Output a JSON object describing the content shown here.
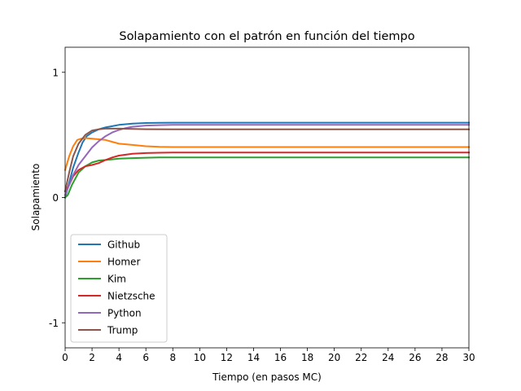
{
  "chart_data": {
    "type": "line",
    "title": "Solapamiento con el patrón en función del tiempo",
    "xlabel": "Tiempo (en pasos MC)",
    "ylabel": "Solapamiento",
    "xlim": [
      0,
      30
    ],
    "ylim": [
      -1.2,
      1.2
    ],
    "xticks": [
      0,
      2,
      4,
      6,
      8,
      10,
      12,
      14,
      16,
      18,
      20,
      22,
      24,
      26,
      28,
      30
    ],
    "yticks": [
      -1,
      0,
      1
    ],
    "grid": false,
    "legend_position": "lower-left",
    "series": [
      {
        "name": "Github",
        "color": "#1f77b4",
        "x": [
          0,
          0.3,
          0.6,
          1,
          1.3,
          1.6,
          2,
          2.5,
          3,
          3.5,
          4,
          5,
          6,
          7,
          8,
          10,
          15,
          20,
          25,
          30
        ],
        "y": [
          0,
          0.12,
          0.24,
          0.36,
          0.44,
          0.49,
          0.52,
          0.545,
          0.56,
          0.57,
          0.58,
          0.59,
          0.595,
          0.597,
          0.598,
          0.598,
          0.598,
          0.598,
          0.598,
          0.598
        ]
      },
      {
        "name": "Homer",
        "color": "#ff7f0e",
        "x": [
          0,
          0.3,
          0.6,
          0.9,
          1.2,
          1.5,
          2,
          2.5,
          3,
          3.5,
          4,
          5,
          6,
          7,
          8,
          10,
          15,
          20,
          25,
          30
        ],
        "y": [
          0.22,
          0.33,
          0.41,
          0.46,
          0.47,
          0.475,
          0.47,
          0.465,
          0.46,
          0.445,
          0.43,
          0.42,
          0.41,
          0.405,
          0.403,
          0.403,
          0.403,
          0.403,
          0.403,
          0.403
        ]
      },
      {
        "name": "Kim",
        "color": "#2ca02c",
        "x": [
          0,
          0.2,
          0.5,
          1,
          1.5,
          2,
          2.5,
          3,
          3.5,
          4,
          5,
          6,
          7,
          8,
          10,
          15,
          20,
          25,
          30
        ],
        "y": [
          0,
          0.02,
          0.1,
          0.2,
          0.25,
          0.28,
          0.295,
          0.3,
          0.305,
          0.31,
          0.315,
          0.318,
          0.32,
          0.32,
          0.32,
          0.32,
          0.32,
          0.32,
          0.32
        ]
      },
      {
        "name": "Nietzsche",
        "color": "#d62728",
        "x": [
          0,
          0.3,
          0.6,
          1,
          1.5,
          2,
          2.5,
          3,
          3.5,
          4,
          5,
          6,
          7,
          8,
          10,
          15,
          20,
          25,
          30
        ],
        "y": [
          0.05,
          0.1,
          0.17,
          0.22,
          0.25,
          0.26,
          0.275,
          0.3,
          0.32,
          0.335,
          0.35,
          0.355,
          0.358,
          0.36,
          0.36,
          0.36,
          0.36,
          0.36,
          0.36
        ]
      },
      {
        "name": "Python",
        "color": "#9467bd",
        "x": [
          0,
          0.3,
          0.6,
          1,
          1.5,
          2,
          2.5,
          3,
          3.5,
          4,
          4.5,
          5,
          6,
          7,
          8,
          10,
          15,
          20,
          25,
          30
        ],
        "y": [
          0.02,
          0.1,
          0.18,
          0.26,
          0.33,
          0.4,
          0.45,
          0.49,
          0.52,
          0.54,
          0.555,
          0.565,
          0.575,
          0.578,
          0.58,
          0.58,
          0.58,
          0.58,
          0.58,
          0.58
        ]
      },
      {
        "name": "Trump",
        "color": "#8c564b",
        "x": [
          0,
          0.3,
          0.6,
          1,
          1.5,
          2,
          2.5,
          3,
          4,
          5,
          6,
          8,
          10,
          15,
          20,
          25,
          30
        ],
        "y": [
          0.05,
          0.2,
          0.33,
          0.43,
          0.5,
          0.535,
          0.545,
          0.55,
          0.55,
          0.548,
          0.546,
          0.545,
          0.545,
          0.545,
          0.545,
          0.545,
          0.545
        ]
      }
    ]
  }
}
